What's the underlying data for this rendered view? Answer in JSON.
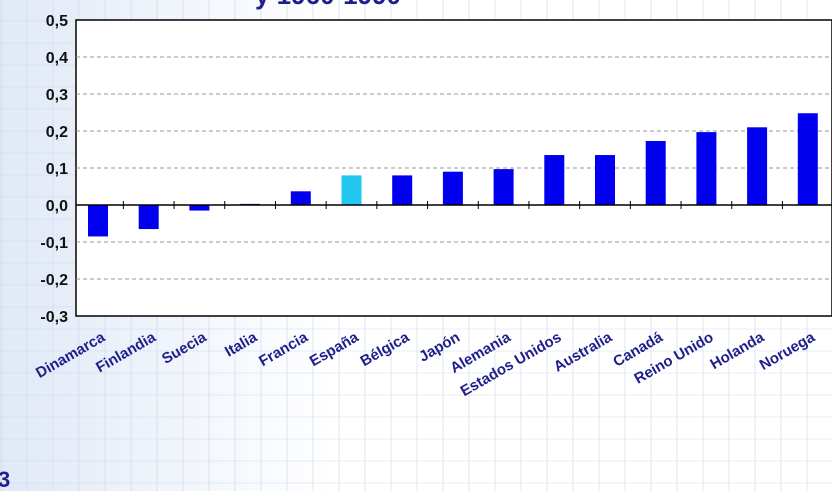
{
  "title_fragment": "y 1960-1990",
  "corner_text": "3",
  "chart_data": {
    "type": "bar",
    "categories": [
      "Dinamarca",
      "Finlandia",
      "Suecia",
      "Italia",
      "Francia",
      "España",
      "Bélgica",
      "Japón",
      "Alemania",
      "Estados Unidos",
      "Australia",
      "Canadá",
      "Reino Unido",
      "Holanda",
      "Noruega"
    ],
    "values": [
      -0.085,
      -0.065,
      -0.015,
      0.003,
      0.037,
      0.08,
      0.08,
      0.09,
      0.097,
      0.135,
      0.135,
      0.173,
      0.197,
      0.21,
      0.248
    ],
    "highlight_category": "España",
    "ylim": [
      -0.3,
      0.5
    ],
    "yticks": [
      "0,5",
      "0,4",
      "0,3",
      "0,2",
      "0,1",
      "0,0",
      "-0,1",
      "-0,2",
      "-0,3"
    ],
    "grid": true,
    "colors": {
      "bar": "#0000ee",
      "highlight": "#22c8f0",
      "grid": "#9a9a9a",
      "axis": "#000000"
    }
  }
}
